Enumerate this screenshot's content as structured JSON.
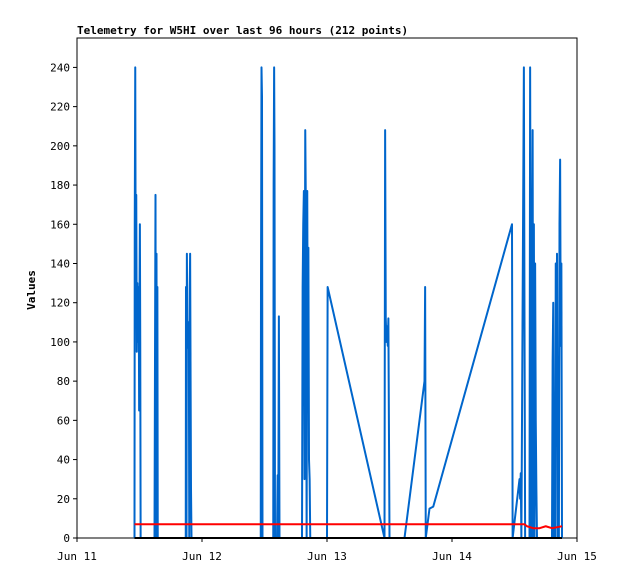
{
  "chart_data": {
    "type": "line",
    "title": "Telemetry for W5HI over last 96 hours (212 points)",
    "ylabel": "Values",
    "xlabel": "",
    "ylim": [
      0,
      255
    ],
    "xlim": [
      0,
      4
    ],
    "y_ticks": [
      0,
      20,
      40,
      60,
      80,
      100,
      120,
      140,
      160,
      180,
      200,
      220,
      240
    ],
    "x_ticks": [
      {
        "x": 0,
        "label": "Jun 11"
      },
      {
        "x": 1,
        "label": "Jun 12"
      },
      {
        "x": 2,
        "label": "Jun 13"
      },
      {
        "x": 3,
        "label": "Jun 14"
      },
      {
        "x": 4,
        "label": "Jun 15"
      }
    ],
    "series": [
      {
        "name": "",
        "color": "#0066cc",
        "points": [
          [
            0.46,
            0
          ],
          [
            0.462,
            160
          ],
          [
            0.466,
            240
          ],
          [
            0.47,
            120
          ],
          [
            0.474,
            175
          ],
          [
            0.478,
            95
          ],
          [
            0.483,
            130
          ],
          [
            0.487,
            100
          ],
          [
            0.49,
            125
          ],
          [
            0.494,
            128
          ],
          [
            0.497,
            65
          ],
          [
            0.5,
            120
          ],
          [
            0.503,
            160
          ],
          [
            0.506,
            100
          ],
          [
            0.509,
            0
          ],
          [
            0.62,
            0
          ],
          [
            0.624,
            90
          ],
          [
            0.628,
            175
          ],
          [
            0.632,
            0
          ],
          [
            0.636,
            145
          ],
          [
            0.64,
            0
          ],
          [
            0.643,
            128
          ],
          [
            0.646,
            0
          ],
          [
            0.87,
            0
          ],
          [
            0.872,
            128
          ],
          [
            0.876,
            0
          ],
          [
            0.879,
            145
          ],
          [
            0.882,
            112
          ],
          [
            0.885,
            100
          ],
          [
            0.888,
            97
          ],
          [
            0.891,
            110
          ],
          [
            0.895,
            97
          ],
          [
            0.898,
            0
          ],
          [
            0.902,
            128
          ],
          [
            0.905,
            145
          ],
          [
            0.909,
            75
          ],
          [
            0.912,
            25
          ],
          [
            0.916,
            0
          ],
          [
            1.47,
            0
          ],
          [
            1.472,
            128
          ],
          [
            1.476,
            240
          ],
          [
            1.48,
            225
          ],
          [
            1.484,
            0
          ],
          [
            1.57,
            0
          ],
          [
            1.573,
            180
          ],
          [
            1.577,
            240
          ],
          [
            1.58,
            200
          ],
          [
            1.584,
            0
          ],
          [
            1.6,
            0
          ],
          [
            1.605,
            32
          ],
          [
            1.61,
            0
          ],
          [
            1.615,
            113
          ],
          [
            1.62,
            0
          ],
          [
            1.8,
            0
          ],
          [
            1.805,
            128
          ],
          [
            1.81,
            160
          ],
          [
            1.815,
            177
          ],
          [
            1.82,
            30
          ],
          [
            1.826,
            208
          ],
          [
            1.832,
            160
          ],
          [
            1.837,
            0
          ],
          [
            1.842,
            177
          ],
          [
            1.846,
            90
          ],
          [
            1.851,
            148
          ],
          [
            1.856,
            40
          ],
          [
            1.861,
            30
          ],
          [
            1.866,
            0
          ],
          [
            1.87,
            0
          ],
          [
            2.0,
            0
          ],
          [
            2.005,
            128
          ],
          [
            2.46,
            0
          ],
          [
            2.465,
            208
          ],
          [
            2.47,
            112
          ],
          [
            2.476,
            100
          ],
          [
            2.48,
            108
          ],
          [
            2.486,
            98
          ],
          [
            2.491,
            112
          ],
          [
            2.5,
            0
          ],
          [
            2.6,
            0
          ],
          [
            2.62,
            0
          ],
          [
            2.78,
            80
          ],
          [
            2.785,
            128
          ],
          [
            2.79,
            0
          ],
          [
            2.82,
            15
          ],
          [
            2.85,
            16
          ],
          [
            3.48,
            160
          ],
          [
            3.485,
            0
          ],
          [
            3.54,
            30
          ],
          [
            3.545,
            20
          ],
          [
            3.55,
            33
          ],
          [
            3.555,
            0
          ],
          [
            3.575,
            240
          ],
          [
            3.58,
            110
          ],
          [
            3.585,
            0
          ],
          [
            3.62,
            0
          ],
          [
            3.625,
            240
          ],
          [
            3.63,
            100
          ],
          [
            3.634,
            0
          ],
          [
            3.64,
            120
          ],
          [
            3.645,
            208
          ],
          [
            3.65,
            0
          ],
          [
            3.655,
            160
          ],
          [
            3.66,
            0
          ],
          [
            3.665,
            140
          ],
          [
            3.67,
            60
          ],
          [
            3.675,
            25
          ],
          [
            3.68,
            0
          ],
          [
            3.8,
            0
          ],
          [
            3.805,
            90
          ],
          [
            3.81,
            120
          ],
          [
            3.815,
            0
          ],
          [
            3.82,
            40
          ],
          [
            3.826,
            0
          ],
          [
            3.83,
            140
          ],
          [
            3.835,
            60
          ],
          [
            3.84,
            145
          ],
          [
            3.845,
            0
          ],
          [
            3.85,
            40
          ],
          [
            3.855,
            0
          ],
          [
            3.86,
            160
          ],
          [
            3.865,
            193
          ],
          [
            3.87,
            98
          ],
          [
            3.875,
            140
          ],
          [
            3.88,
            0
          ]
        ]
      },
      {
        "name": "",
        "color": "#ff0000",
        "points": [
          [
            0.46,
            7
          ],
          [
            1.0,
            7
          ],
          [
            2.0,
            7
          ],
          [
            3.0,
            7
          ],
          [
            3.5,
            7
          ],
          [
            3.58,
            7
          ],
          [
            3.6,
            6
          ],
          [
            3.65,
            5
          ],
          [
            3.7,
            5
          ],
          [
            3.75,
            6
          ],
          [
            3.8,
            5
          ],
          [
            3.88,
            6
          ]
        ]
      },
      {
        "name": "",
        "color": "#000000",
        "points": [
          [
            0.46,
            0
          ],
          [
            1.0,
            0
          ],
          [
            2.0,
            0
          ],
          [
            3.0,
            0
          ],
          [
            3.88,
            0
          ]
        ]
      }
    ]
  }
}
